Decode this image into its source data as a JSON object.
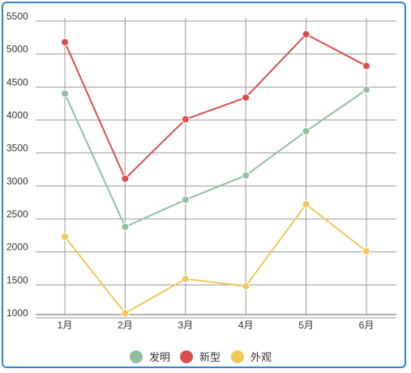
{
  "chart_data": {
    "type": "line",
    "title": "",
    "xlabel": "",
    "ylabel": "",
    "categories": [
      "1月",
      "2月",
      "3月",
      "4月",
      "5月",
      "6月"
    ],
    "ylim": [
      1000,
      5500
    ],
    "yticks": [
      1000,
      1500,
      2000,
      2500,
      3000,
      3500,
      4000,
      4500,
      5000,
      5500
    ],
    "grid": true,
    "legend_position": "bottom-center",
    "series": [
      {
        "name": "发明",
        "color": "#8fbfa0",
        "values": [
          4400,
          2380,
          2790,
          3160,
          3830,
          4460
        ]
      },
      {
        "name": "新型",
        "color": "#d94f4f",
        "values": [
          5180,
          3110,
          4010,
          4340,
          5300,
          4820
        ]
      },
      {
        "name": "外观",
        "color": "#efc75a",
        "values": [
          2230,
          1070,
          1590,
          1480,
          2720,
          2010
        ]
      }
    ]
  }
}
